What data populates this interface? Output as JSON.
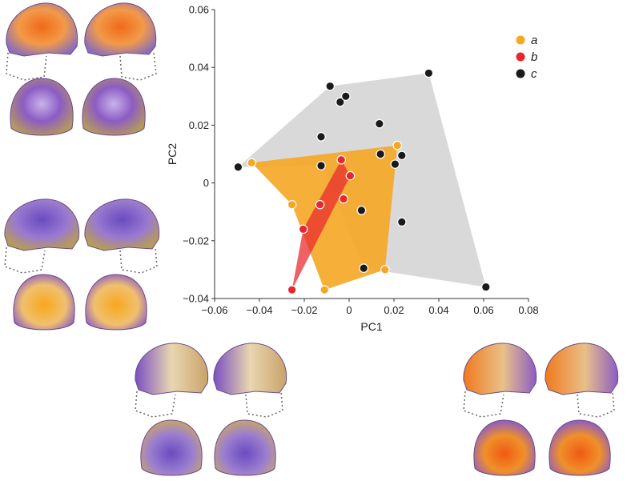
{
  "chart_data": {
    "type": "scatter",
    "xlabel": "PC1",
    "ylabel": "PC2",
    "xlim": [
      -0.06,
      0.08
    ],
    "ylim": [
      -0.04,
      0.06
    ],
    "xticks": [
      -0.06,
      -0.04,
      -0.02,
      0,
      0.02,
      0.04,
      0.06,
      0.08
    ],
    "yticks": [
      -0.04,
      -0.02,
      0,
      0.02,
      0.04,
      0.06
    ],
    "xtick_labels": [
      "−0.06",
      "−0.04",
      "−0.02",
      "0",
      "0.02",
      "0.04",
      "0.06",
      "0.08"
    ],
    "ytick_labels": [
      "−0.04",
      "−0.02",
      "0",
      "0.02",
      "0.04",
      "0.06"
    ],
    "legend_position": "top-right",
    "series": [
      {
        "name": "a",
        "color": "#f5a623",
        "hull_color": "#f5a623",
        "points": [
          [
            -0.0435,
            0.007
          ],
          [
            0.0215,
            0.013
          ],
          [
            0.016,
            -0.03
          ],
          [
            -0.011,
            -0.037
          ],
          [
            -0.0255,
            -0.0075
          ]
        ]
      },
      {
        "name": "b",
        "color": "#e8262b",
        "hull_color": "#e8262b",
        "points": [
          [
            -0.0035,
            0.008
          ],
          [
            0.0005,
            0.0025
          ],
          [
            -0.0025,
            -0.0055
          ],
          [
            -0.013,
            -0.0075
          ],
          [
            -0.0205,
            -0.016
          ],
          [
            -0.0255,
            -0.037
          ]
        ]
      },
      {
        "name": "c",
        "color": "#1a1a1a",
        "hull_color": "#9a9a9a",
        "points": [
          [
            -0.0495,
            0.0055
          ],
          [
            -0.0085,
            0.0335
          ],
          [
            -0.004,
            0.028
          ],
          [
            -0.0015,
            0.03
          ],
          [
            0.0355,
            0.038
          ],
          [
            0.0135,
            0.0205
          ],
          [
            -0.0125,
            0.016
          ],
          [
            -0.0125,
            0.006
          ],
          [
            0.014,
            0.01
          ],
          [
            0.0235,
            0.0095
          ],
          [
            0.0205,
            0.0065
          ],
          [
            0.0235,
            -0.0135
          ],
          [
            0.0055,
            -0.0095
          ],
          [
            0.0065,
            -0.0295
          ],
          [
            0.061,
            -0.036
          ]
        ]
      }
    ],
    "hulls": {
      "c": [
        [
          -0.0495,
          0.0055
        ],
        [
          -0.0085,
          0.0335
        ],
        [
          0.0355,
          0.038
        ],
        [
          0.061,
          -0.036
        ],
        [
          0.0065,
          -0.0295
        ],
        [
          -0.012,
          0.006
        ]
      ],
      "a": [
        [
          -0.0435,
          0.007
        ],
        [
          0.0215,
          0.013
        ],
        [
          0.016,
          -0.03
        ],
        [
          -0.011,
          -0.037
        ],
        [
          -0.0255,
          -0.0075
        ]
      ],
      "b": [
        [
          -0.0035,
          0.008
        ],
        [
          0.0005,
          0.0025
        ],
        [
          -0.0255,
          -0.037
        ],
        [
          -0.0205,
          -0.016
        ]
      ]
    }
  },
  "panels": [
    {
      "id": "top-left",
      "colors": [
        "#f07a1c",
        "#8c5cc4"
      ]
    },
    {
      "id": "middle-left",
      "colors": [
        "#7a4fc2",
        "#f4b02a"
      ]
    },
    {
      "id": "bottom-center",
      "colors": [
        "#8a5fc6",
        "#d7b47a"
      ]
    },
    {
      "id": "bottom-right",
      "colors": [
        "#f06a18",
        "#8c5cc4"
      ]
    }
  ]
}
